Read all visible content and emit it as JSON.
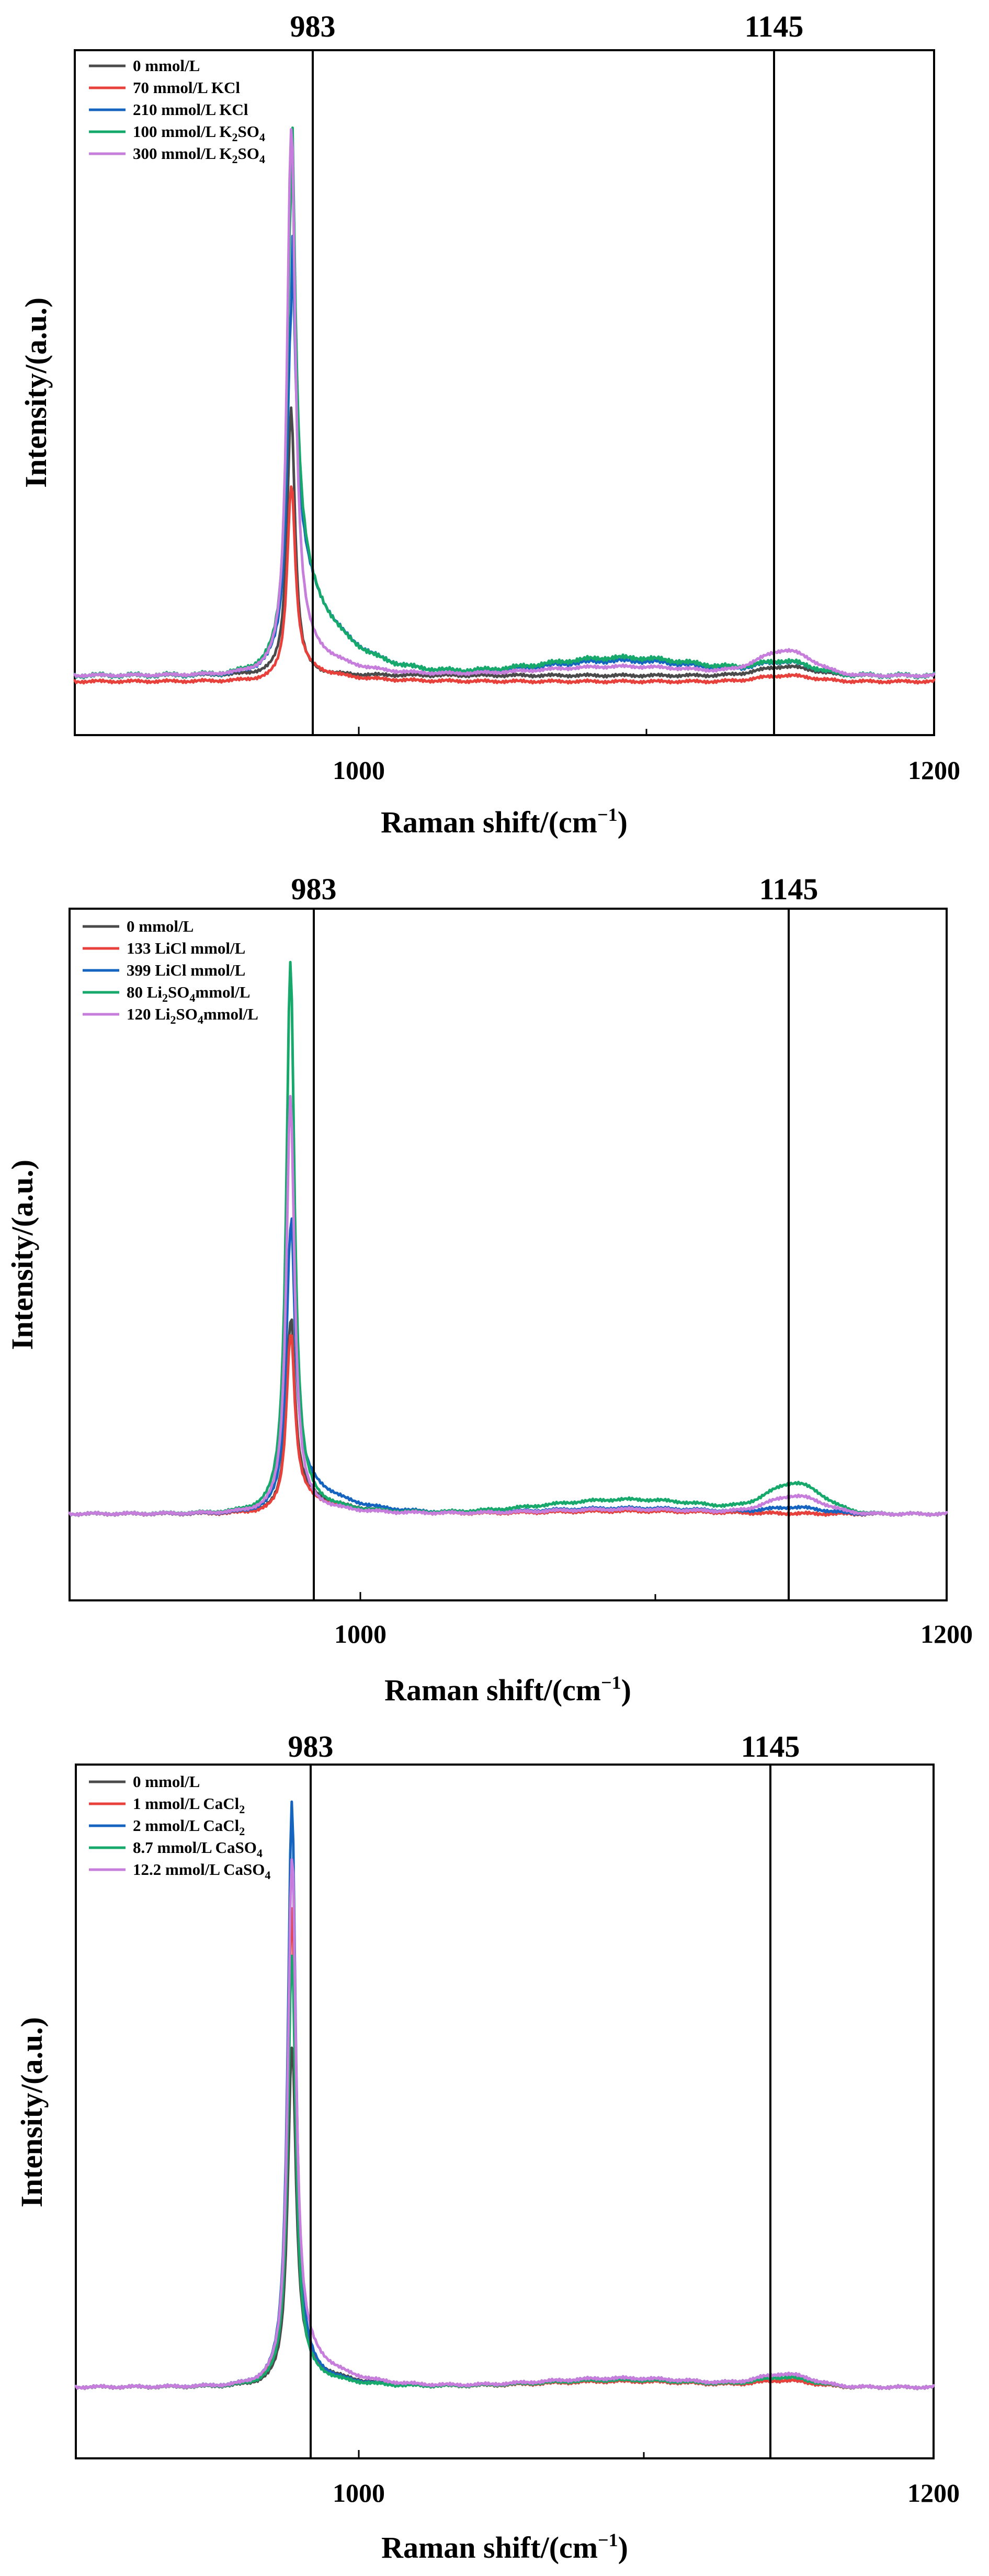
{
  "chart_data": [
    {
      "type": "line",
      "title": "",
      "xlabel": "Raman shift/(cm",
      "xlabel_exponent": "−1",
      "xlabel_suffix": ")",
      "ylabel": "Intensity/(a.u.)",
      "xlim": [
        910,
        1200
      ],
      "ylim": [
        -0.1,
        1.05
      ],
      "x_tick_labels": [
        "1000",
        "1200"
      ],
      "x_tick_values": [
        1000,
        1200
      ],
      "x_minor_ticks": [
        1100
      ],
      "reference_lines": [
        983,
        1145
      ],
      "reference_labels": [
        "983",
        "1145"
      ],
      "legend_position": "top-left",
      "grid": false,
      "series": [
        {
          "name": "0   mmol/L",
          "label_parts": [
            {
              "text": "0   mmol/L"
            }
          ],
          "color": "#4a4a4a",
          "baseline": 0.0,
          "peak983": 0.45,
          "tail": 0.0,
          "hump": 0.0,
          "peak1145": 0.015,
          "noise": 0.002
        },
        {
          "name": "70 mmol/L KCl",
          "label_parts": [
            {
              "text": "70 mmol/L KCl"
            }
          ],
          "color": "#e8413c",
          "baseline": -0.01,
          "peak983": 0.32,
          "tail": 0.03,
          "hump": 0.0,
          "peak1145": 0.01,
          "noise": 0.002
        },
        {
          "name": "210 mmol/L KCl",
          "label_parts": [
            {
              "text": "210 mmol/L KCl"
            }
          ],
          "color": "#1565c0",
          "baseline": 0.0,
          "peak983": 0.55,
          "tail": 0.25,
          "hump": 0.025,
          "peak1145": 0.02,
          "noise": 0.003
        },
        {
          "name": "100 mmol/L K2SO4",
          "label_parts": [
            {
              "text": "100 mmol/L K"
            },
            {
              "text": "2",
              "sub": true
            },
            {
              "text": "SO"
            },
            {
              "text": "4",
              "sub": true
            }
          ],
          "color": "#17a86b",
          "baseline": 0.0,
          "peak983": 0.76,
          "tail": 0.24,
          "hump": 0.03,
          "peak1145": 0.02,
          "noise": 0.003
        },
        {
          "name": "300 mmol/L K2SO4",
          "label_parts": [
            {
              "text": "300 mmol/L K"
            },
            {
              "text": "2",
              "sub": true
            },
            {
              "text": "SO"
            },
            {
              "text": "4",
              "sub": true
            }
          ],
          "color": "#c77ddb",
          "baseline": 0.0,
          "peak983": 0.9,
          "tail": 0.07,
          "hump": 0.015,
          "peak1145": 0.04,
          "noise": 0.002
        }
      ]
    },
    {
      "type": "line",
      "title": "",
      "xlabel": "Raman shift/(cm",
      "xlabel_exponent": "−1",
      "xlabel_suffix": ")",
      "ylabel": "Intensity/(a.u.)",
      "xlim": [
        910,
        1200
      ],
      "ylim": [
        -0.15,
        1.05
      ],
      "x_tick_labels": [
        "1000",
        "1200"
      ],
      "x_tick_values": [
        1000,
        1200
      ],
      "x_minor_ticks": [
        1100
      ],
      "reference_lines": [
        983,
        1145
      ],
      "reference_labels": [
        "983",
        "1145"
      ],
      "legend_position": "top-left",
      "grid": false,
      "series": [
        {
          "name": "0 mmol/L",
          "label_parts": [
            {
              "text": "0 mmol/L"
            }
          ],
          "color": "#4a4a4a",
          "baseline": 0.0,
          "peak983": 0.32,
          "tail": 0.05,
          "hump": 0.005,
          "peak1145": 0.0,
          "noise": 0.002
        },
        {
          "name": "133 LiCl mmol/L",
          "label_parts": [
            {
              "text": "133 LiCl mmol/L"
            }
          ],
          "color": "#e8413c",
          "baseline": 0.0,
          "peak983": 0.3,
          "tail": 0.04,
          "hump": 0.005,
          "peak1145": 0.0,
          "noise": 0.002
        },
        {
          "name": "399 LiCl mmol/L",
          "label_parts": [
            {
              "text": "399 LiCl mmol/L"
            }
          ],
          "color": "#1565c0",
          "baseline": 0.0,
          "peak983": 0.47,
          "tail": 0.09,
          "hump": 0.01,
          "peak1145": 0.01,
          "noise": 0.002
        },
        {
          "name": "80   Li2SO4mmol/L",
          "label_parts": [
            {
              "text": "80   Li"
            },
            {
              "text": "2",
              "sub": true
            },
            {
              "text": "SO"
            },
            {
              "text": "4",
              "sub": true
            },
            {
              "text": "mmol/L"
            }
          ],
          "color": "#17a86b",
          "baseline": 0.0,
          "peak983": 0.95,
          "tail": 0.03,
          "hump": 0.025,
          "peak1145": 0.05,
          "noise": 0.002
        },
        {
          "name": "120  Li2SO4mmol/L",
          "label_parts": [
            {
              "text": "120  Li"
            },
            {
              "text": "2",
              "sub": true
            },
            {
              "text": "SO"
            },
            {
              "text": "4",
              "sub": true
            },
            {
              "text": "mmol/L"
            }
          ],
          "color": "#c77ddb",
          "baseline": 0.0,
          "peak983": 0.72,
          "tail": 0.02,
          "hump": 0.008,
          "peak1145": 0.03,
          "noise": 0.002
        }
      ]
    },
    {
      "type": "line",
      "title": "",
      "xlabel": "Raman shift/(cm",
      "xlabel_exponent": "−1",
      "xlabel_suffix": ")",
      "ylabel": "Intensity/(a.u.)",
      "xlim": [
        910,
        1200
      ],
      "ylim": [
        -0.12,
        1.05
      ],
      "x_tick_labels": [
        "1000",
        "1200"
      ],
      "x_tick_values": [
        1000,
        1200
      ],
      "x_minor_ticks": [
        1100
      ],
      "reference_lines": [
        983,
        1145
      ],
      "reference_labels": [
        "983",
        "1145"
      ],
      "legend_position": "top-left",
      "grid": false,
      "series": [
        {
          "name": "0 mmol/L",
          "label_parts": [
            {
              "text": "0 mmol/L"
            }
          ],
          "color": "#4a4a4a",
          "baseline": 0.0,
          "peak983": 0.56,
          "tail": 0.05,
          "hump": 0.01,
          "peak1145": 0.01,
          "noise": 0.002
        },
        {
          "name": "1 mmol/L CaCl2",
          "label_parts": [
            {
              "text": "1 mmol/L CaCl"
            },
            {
              "text": "2",
              "sub": true
            }
          ],
          "color": "#e8413c",
          "baseline": 0.0,
          "peak983": 0.8,
          "tail": 0.03,
          "hump": 0.01,
          "peak1145": 0.01,
          "noise": 0.002
        },
        {
          "name": "2 mmol/L CaCl2",
          "label_parts": [
            {
              "text": "2 mmol/L CaCl"
            },
            {
              "text": "2",
              "sub": true
            }
          ],
          "color": "#1565c0",
          "baseline": 0.0,
          "peak983": 0.98,
          "tail": 0.03,
          "hump": 0.015,
          "peak1145": 0.02,
          "noise": 0.002
        },
        {
          "name": "8.7 mmol/L   CaSO4",
          "label_parts": [
            {
              "text": "8.7 mmol/L   CaSO"
            },
            {
              "text": "4",
              "sub": true
            }
          ],
          "color": "#17a86b",
          "baseline": 0.0,
          "peak983": 0.72,
          "tail": 0.03,
          "hump": 0.012,
          "peak1145": 0.015,
          "noise": 0.002
        },
        {
          "name": "12.2 mmol/L CaSO4",
          "label_parts": [
            {
              "text": "12.2 mmol/L CaSO"
            },
            {
              "text": "4",
              "sub": true
            }
          ],
          "color": "#c77ddb",
          "baseline": 0.0,
          "peak983": 0.87,
          "tail": 0.08,
          "hump": 0.015,
          "peak1145": 0.02,
          "noise": 0.002
        }
      ]
    }
  ]
}
